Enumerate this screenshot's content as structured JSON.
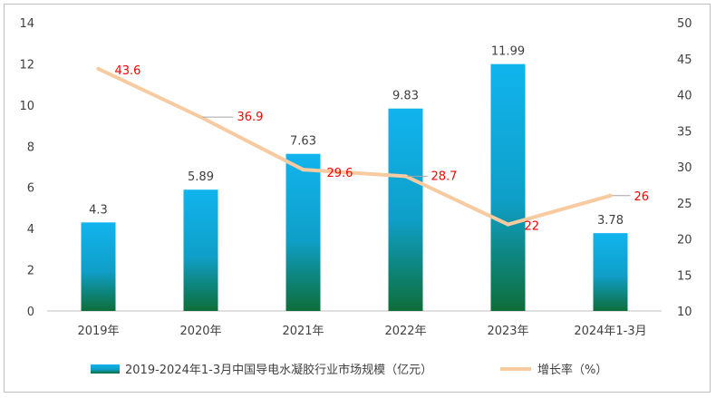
{
  "chart_data": {
    "type": "bar",
    "categories": [
      "2019年",
      "2020年",
      "2021年",
      "2022年",
      "2023年",
      "2024年1-3月"
    ],
    "series": [
      {
        "name": "2019-2024年1-3月中国导电水凝胶行业市场规模（亿元）",
        "type": "bar",
        "axis": "left",
        "values": [
          4.3,
          5.89,
          7.63,
          9.83,
          11.99,
          3.78
        ],
        "labels": [
          "4.3",
          "5.89",
          "7.63",
          "9.83",
          "11.99",
          "3.78"
        ]
      },
      {
        "name": "增长率（%）",
        "type": "line",
        "axis": "right",
        "x_categories": [
          "2019年",
          "2020年",
          "2021年",
          "2022年",
          "2023年",
          "2024年1-3月"
        ],
        "values": [
          43.6,
          36.9,
          29.6,
          28.7,
          22,
          26
        ],
        "labels": [
          "43.6",
          "36.9",
          "29.6",
          "28.7",
          "22",
          "26"
        ]
      }
    ],
    "y_left": {
      "min": 0,
      "max": 14,
      "step": 2,
      "ticks": [
        "0",
        "2",
        "4",
        "6",
        "8",
        "10",
        "12",
        "14"
      ]
    },
    "y_right": {
      "min": 10,
      "max": 50,
      "step": 5,
      "ticks": [
        "10",
        "15",
        "20",
        "25",
        "30",
        "35",
        "40",
        "45",
        "50"
      ]
    },
    "grid": false,
    "legend_position": "bottom",
    "colors": {
      "bar_top": "#10b4ee",
      "bar_bottom": "#0e6e3a",
      "line": "#f7caa0",
      "line_label": "#ff0000",
      "leader": "#a6a6a6",
      "axis": "#bfbfbf",
      "text": "#404040"
    }
  }
}
